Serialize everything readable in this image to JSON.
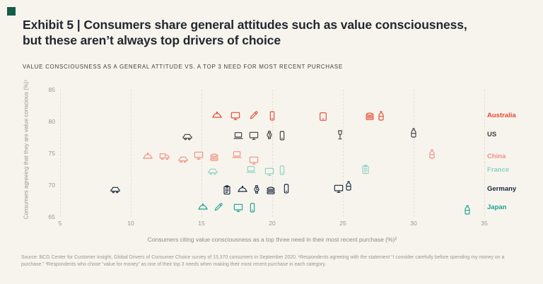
{
  "page": {
    "background": "#f7f4ee",
    "logo_color": "#145c46"
  },
  "header": {
    "title": "Exhibit 5 | Consumers share general attitudes such as value consciousness, but these aren’t always top drivers of choice",
    "eyebrow": "VALUE CONSCIOUSNESS AS A GENERAL ATTITUDE VS. A TOP 3 NEED FOR MOST RECENT PURCHASE"
  },
  "chart_data": {
    "type": "scatter",
    "xlabel": "Consumers citing value consciousness as a top three need in their most recent purchase (%)²",
    "ylabel": "Consumers agreeing that they are value conscious (%)¹",
    "xlim": [
      5,
      35
    ],
    "ylim": [
      65,
      85
    ],
    "xticks": [
      5,
      10,
      15,
      20,
      25,
      30,
      35
    ],
    "yticks": [
      65,
      70,
      75,
      80,
      85
    ],
    "grid": "vertical-dashed",
    "legend_position": "right",
    "marker_style": "category-icons",
    "series": [
      {
        "name": "Australia",
        "color": "#e8492f",
        "points": [
          {
            "x": 16.1,
            "y": 80.9,
            "icon": "cloche"
          },
          {
            "x": 17.4,
            "y": 80.9,
            "icon": "tv"
          },
          {
            "x": 18.7,
            "y": 81.0,
            "icon": "pencil"
          },
          {
            "x": 20.0,
            "y": 80.9,
            "icon": "phone"
          },
          {
            "x": 23.6,
            "y": 80.8,
            "icon": "tablet"
          },
          {
            "x": 26.9,
            "y": 80.9,
            "icon": "burger"
          },
          {
            "x": 27.7,
            "y": 80.9,
            "icon": "bottle"
          }
        ]
      },
      {
        "name": "US",
        "color": "#3f3f3f",
        "points": [
          {
            "x": 14.0,
            "y": 77.7,
            "icon": "car"
          },
          {
            "x": 17.6,
            "y": 77.8,
            "icon": "laptop"
          },
          {
            "x": 18.7,
            "y": 77.8,
            "icon": "tv"
          },
          {
            "x": 19.8,
            "y": 77.9,
            "icon": "watch"
          },
          {
            "x": 20.7,
            "y": 77.8,
            "icon": "phone"
          },
          {
            "x": 24.8,
            "y": 77.9,
            "icon": "wine"
          },
          {
            "x": 30.0,
            "y": 78.2,
            "icon": "bottle"
          }
        ]
      },
      {
        "name": "China",
        "color": "#f09280",
        "points": [
          {
            "x": 11.2,
            "y": 74.4,
            "icon": "cloche"
          },
          {
            "x": 12.4,
            "y": 74.6,
            "icon": "truck"
          },
          {
            "x": 13.7,
            "y": 74.1,
            "icon": "car"
          },
          {
            "x": 14.8,
            "y": 74.7,
            "icon": "tv"
          },
          {
            "x": 15.9,
            "y": 74.4,
            "icon": "burger"
          },
          {
            "x": 17.5,
            "y": 74.8,
            "icon": "laptop"
          },
          {
            "x": 18.7,
            "y": 73.9,
            "icon": "tv"
          },
          {
            "x": 31.3,
            "y": 74.9,
            "icon": "bottle"
          }
        ]
      },
      {
        "name": "France",
        "color": "#8ed2c3",
        "points": [
          {
            "x": 15.8,
            "y": 72.2,
            "icon": "car"
          },
          {
            "x": 18.5,
            "y": 72.4,
            "icon": "laptop"
          },
          {
            "x": 19.8,
            "y": 72.1,
            "icon": "tv"
          },
          {
            "x": 20.7,
            "y": 72.3,
            "icon": "phone"
          },
          {
            "x": 26.6,
            "y": 72.4,
            "icon": "clipboard"
          }
        ]
      },
      {
        "name": "Germany",
        "color": "#15283f",
        "points": [
          {
            "x": 8.9,
            "y": 69.3,
            "icon": "car"
          },
          {
            "x": 16.8,
            "y": 69.2,
            "icon": "clipboard"
          },
          {
            "x": 17.9,
            "y": 69.2,
            "icon": "cloche"
          },
          {
            "x": 18.9,
            "y": 69.3,
            "icon": "watch"
          },
          {
            "x": 19.9,
            "y": 69.2,
            "icon": "burger"
          },
          {
            "x": 21.0,
            "y": 69.4,
            "icon": "phone"
          },
          {
            "x": 24.7,
            "y": 69.5,
            "icon": "tv"
          },
          {
            "x": 25.4,
            "y": 69.9,
            "icon": "bottle"
          }
        ]
      },
      {
        "name": "Japan",
        "color": "#1aa38c",
        "points": [
          {
            "x": 15.1,
            "y": 66.5,
            "icon": "cloche"
          },
          {
            "x": 16.2,
            "y": 66.6,
            "icon": "pencil"
          },
          {
            "x": 17.6,
            "y": 66.4,
            "icon": "tv"
          },
          {
            "x": 18.6,
            "y": 66.4,
            "icon": "phone"
          },
          {
            "x": 33.8,
            "y": 66.1,
            "icon": "bottle"
          }
        ]
      }
    ]
  },
  "footer": {
    "source": "Source: BCG Center for Customer Insight, Global Drivers of Consumer Choice survey of 15,370 consumers in September 2020. ¹Respondents agreeing with the statement “I consider carefully before spending my money on a purchase.” ²Respondents who chose “value for money” as one of their top 3 needs when making their most recent purchase in each category."
  }
}
